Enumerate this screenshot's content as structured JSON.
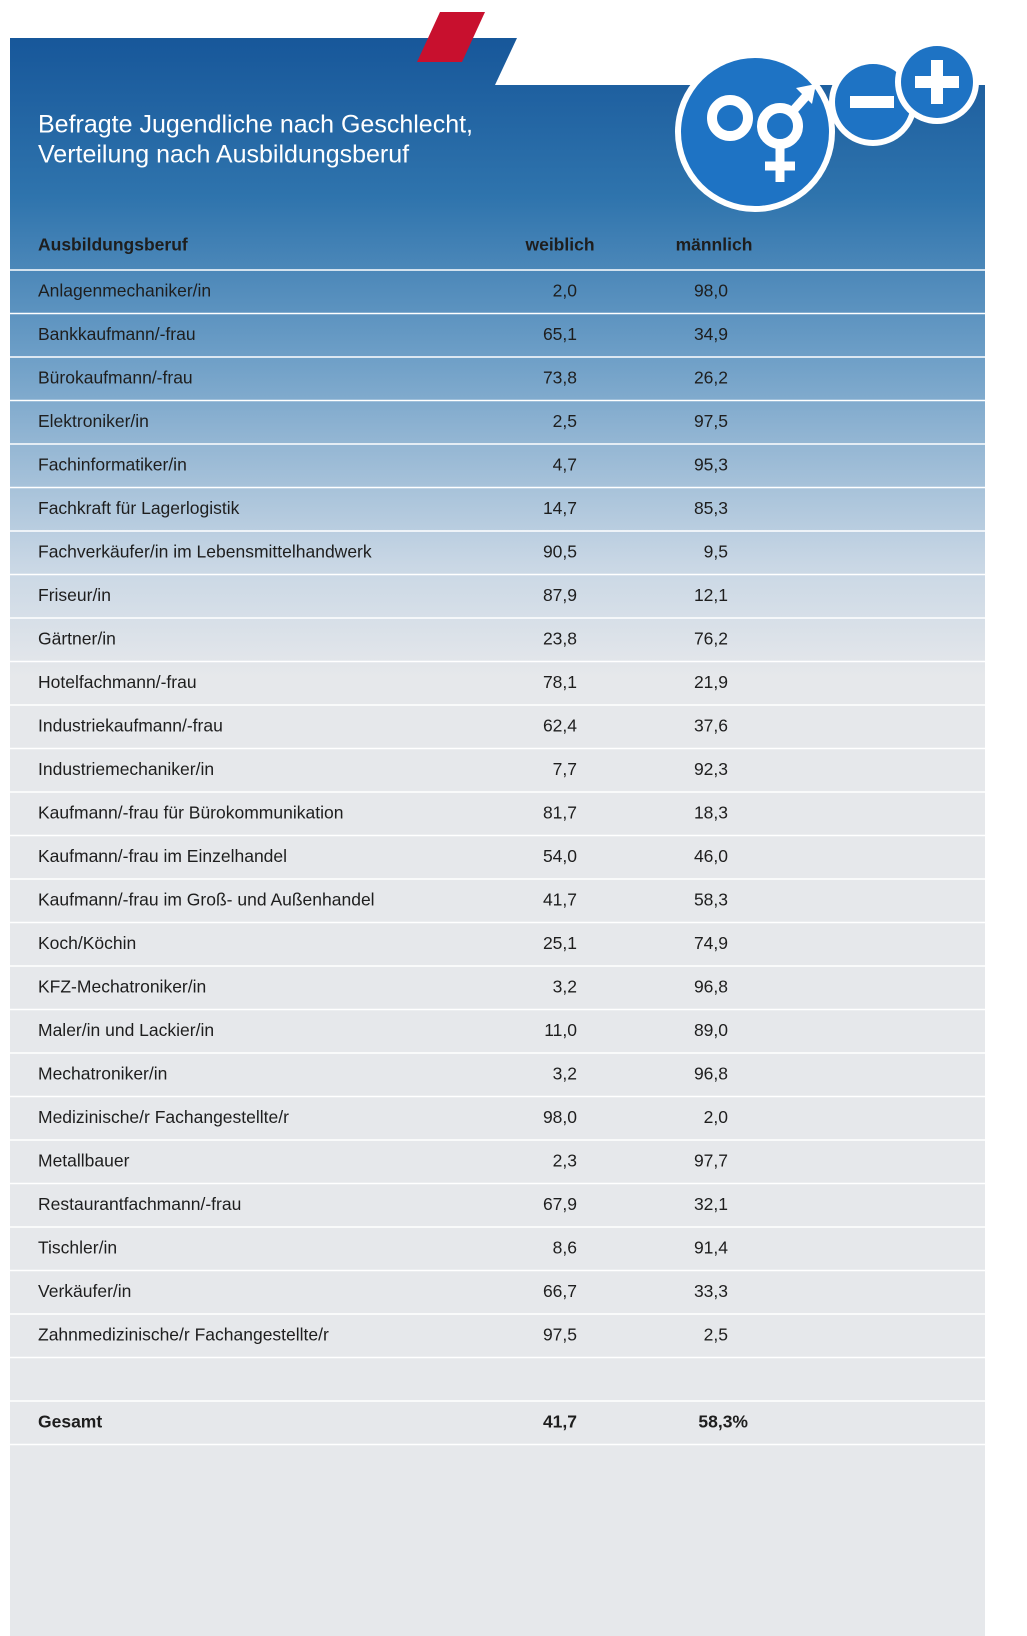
{
  "header": {
    "title_lines": [
      "Befragte Jugendliche nach Geschlecht,",
      "Verteilung nach Ausbildungsberuf"
    ]
  },
  "table": {
    "columns": [
      "Ausbildungsberuf",
      "weiblich",
      "männlich"
    ],
    "rows": [
      [
        "Anlagenmechaniker/in",
        "2,0",
        "98,0"
      ],
      [
        "Bankkaufmann/-frau",
        "65,1",
        "34,9"
      ],
      [
        "Bürokaufmann/-frau",
        "73,8",
        "26,2"
      ],
      [
        "Elektroniker/in",
        "2,5",
        "97,5"
      ],
      [
        "Fachinformatiker/in",
        "4,7",
        "95,3"
      ],
      [
        "Fachkraft für Lagerlogistik",
        "14,7",
        "85,3"
      ],
      [
        "Fachverkäufer/in im Lebensmittelhandwerk",
        "90,5",
        "9,5"
      ],
      [
        "Friseur/in",
        "87,9",
        "12,1"
      ],
      [
        "Gärtner/in",
        "23,8",
        "76,2"
      ],
      [
        "Hotelfachmann/-frau",
        "78,1",
        "21,9"
      ],
      [
        "Industriekaufmann/-frau",
        "62,4",
        "37,6"
      ],
      [
        "Industriemechaniker/in",
        "7,7",
        "92,3"
      ],
      [
        "Kaufmann/-frau für Bürokommunikation",
        "81,7",
        "18,3"
      ],
      [
        "Kaufmann/-frau im Einzelhandel",
        "54,0",
        "46,0"
      ],
      [
        "Kaufmann/-frau im Groß- und Außenhandel",
        "41,7",
        "58,3"
      ],
      [
        "Koch/Köchin",
        "25,1",
        "74,9"
      ],
      [
        "KFZ-Mechatroniker/in",
        "3,2",
        "96,8"
      ],
      [
        "Maler/in und Lackier/in",
        "11,0",
        "89,0"
      ],
      [
        "Mechatroniker/in",
        "3,2",
        "96,8"
      ],
      [
        "Medizinische/r Fachangestellte/r",
        "98,0",
        "2,0"
      ],
      [
        "Metallbauer",
        "2,3",
        "97,7"
      ],
      [
        "Restaurantfachmann/-frau",
        "67,9",
        "32,1"
      ],
      [
        "Tischler/in",
        "8,6",
        "91,4"
      ],
      [
        "Verkäufer/in",
        "66,7",
        "33,3"
      ],
      [
        "Zahnmedizinische/r Fachangestellte/r",
        "97,5",
        "2,5"
      ]
    ],
    "total": [
      "Gesamt",
      "41,7",
      "58,3%"
    ]
  }
}
